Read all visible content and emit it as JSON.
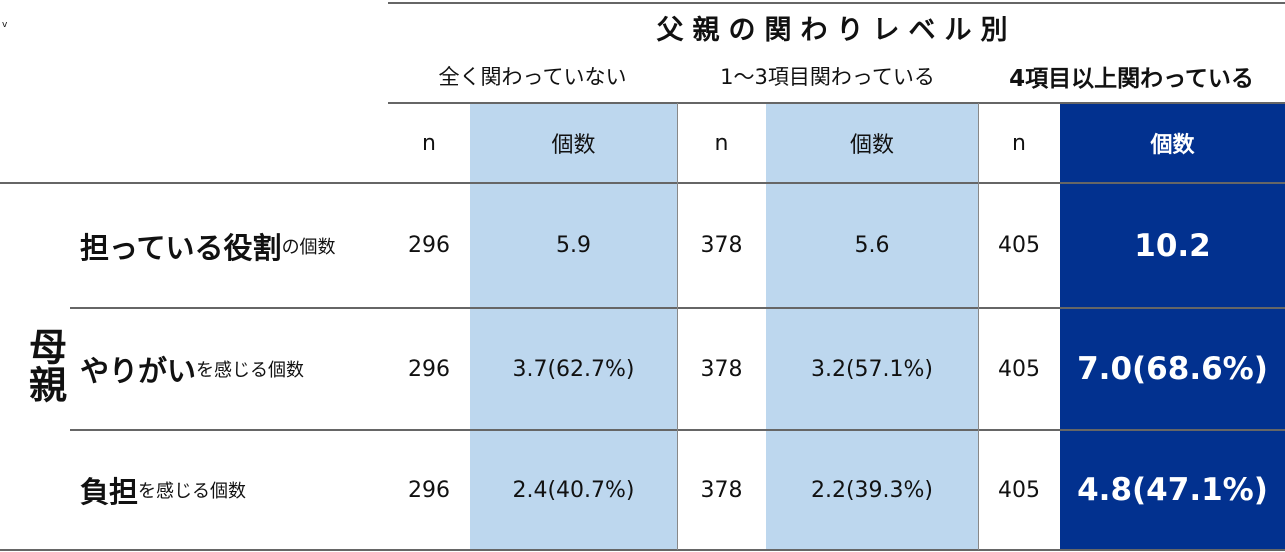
{
  "corner": "v",
  "header": {
    "title": "父親の関わりレベル別",
    "groups": [
      "全く関わっていない",
      "1～3項目関わっている",
      "4項目以上関わっている"
    ],
    "columns": [
      "n",
      "個数",
      "n",
      "個数",
      "n",
      "個数"
    ]
  },
  "row_group": "母親",
  "rows": [
    {
      "label_main": "担っている役割",
      "label_sub": "の個数",
      "cells": [
        "296",
        "5.9",
        "378",
        "5.6",
        "405",
        "10.2"
      ]
    },
    {
      "label_main": "やりがい",
      "label_sub": "を感じる個数",
      "cells": [
        "296",
        "3.7(62.7%)",
        "378",
        "3.2(57.1%)",
        "405",
        "7.0(68.6%)"
      ]
    },
    {
      "label_main": "負担",
      "label_sub": "を感じる個数",
      "cells": [
        "296",
        "2.4(40.7%)",
        "378",
        "2.2(39.3%)",
        "405",
        "4.8(47.1%)"
      ]
    }
  ]
}
